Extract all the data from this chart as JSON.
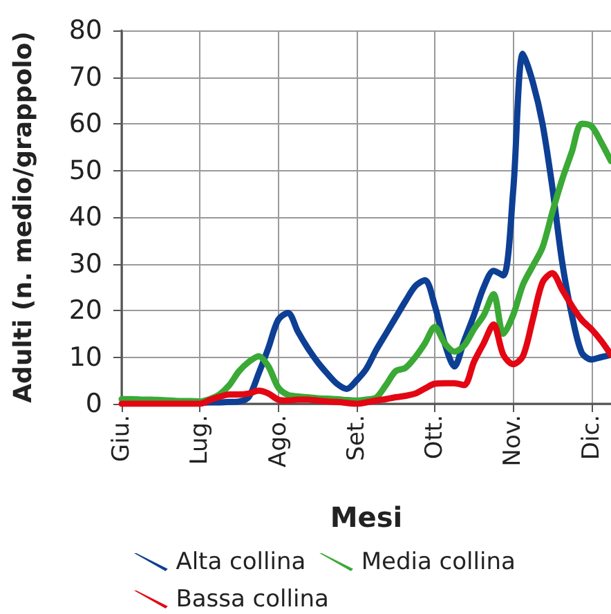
{
  "chart_data": {
    "type": "line",
    "xlabel": "Mesi",
    "ylabel": "Adulti (n. medio/grappolo)",
    "categories": [
      "Giu.",
      null,
      null,
      null,
      null,
      null,
      null,
      null,
      "Lug.",
      null,
      null,
      null,
      null,
      null,
      null,
      null,
      "Ago.",
      null,
      null,
      null,
      null,
      null,
      null,
      null,
      "Set.",
      null,
      null,
      null,
      null,
      null,
      null,
      null,
      "Ott.",
      null,
      null,
      null,
      null,
      null,
      null,
      null,
      "Nov.",
      null,
      null,
      null,
      null,
      null,
      null,
      null,
      "Dic.",
      null,
      null
    ],
    "ylim": [
      0,
      80
    ],
    "yticks": [
      0,
      10,
      20,
      30,
      40,
      50,
      60,
      70,
      80
    ],
    "grid": true,
    "legend": "bottom",
    "marker": "none",
    "line_style": "solid",
    "series": [
      {
        "name": "Alta collina",
        "color": "#0d3f94",
        "values": [
          null,
          null,
          null,
          null,
          null,
          null,
          null,
          0.2,
          0.2,
          0.3,
          0.3,
          0.4,
          0.5,
          1.5,
          6.5,
          12,
          18,
          19.5,
          15.5,
          12,
          9,
          6.5,
          4.3,
          3.2,
          5,
          7.5,
          11.5,
          15,
          18.5,
          22,
          25.2,
          26.5,
          21,
          13,
          8,
          13.5,
          19,
          25,
          28.5,
          27.5,
          45.5,
          75,
          69,
          60,
          46.5,
          30.5,
          19,
          11,
          9.5,
          10,
          10.5
        ]
      },
      {
        "name": "Media collina",
        "color": "#3aa935",
        "values": [
          1,
          1,
          0.9,
          0.9,
          0.8,
          0.7,
          0.6,
          0.6,
          0.5,
          1,
          2,
          4,
          7,
          9,
          10.2,
          8,
          3.5,
          1.9,
          1.6,
          1.4,
          1.2,
          1.1,
          1,
          0.8,
          0.7,
          0.9,
          1.3,
          4,
          7,
          7.7,
          10,
          13,
          16.5,
          13,
          11.2,
          12.5,
          16,
          19,
          23.5,
          15,
          19,
          25.5,
          29.5,
          33.5,
          41,
          48,
          54,
          60,
          59.5,
          56,
          52
        ]
      },
      {
        "name": "Bassa collina",
        "color": "#e30613",
        "values": [
          0,
          0,
          0,
          0,
          0,
          0,
          0,
          0,
          0,
          0.8,
          1.5,
          2,
          2,
          2.2,
          2.8,
          2.2,
          0.9,
          0.7,
          0.9,
          0.9,
          0.7,
          0.5,
          0.4,
          0.2,
          0,
          0.3,
          0.7,
          1,
          1.4,
          1.7,
          2.2,
          3.3,
          4.3,
          4.4,
          4.4,
          4,
          9,
          13,
          17,
          10.5,
          8.5,
          10.2,
          18,
          26,
          28,
          24.5,
          21,
          18,
          16,
          13.5,
          10.5
        ]
      }
    ]
  }
}
